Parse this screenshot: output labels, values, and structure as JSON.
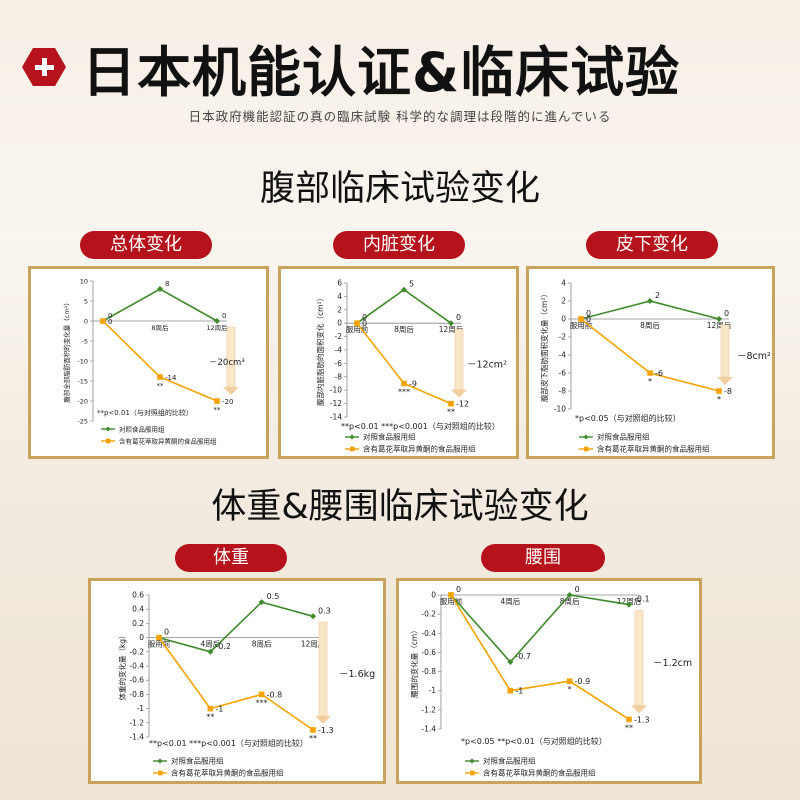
{
  "header": {
    "title": "日本机能认证&临床试验",
    "subtitle": "日本政府機能認証の真の臨床試験 科学的な調理は段階的に進んでいる"
  },
  "section1": {
    "title": "腹部临床试验变化"
  },
  "section2": {
    "title": "体重&腰围临床试验变化"
  },
  "colors": {
    "control": "#3f8a2a",
    "treatment": "#f5a300",
    "accent": "#b5121b",
    "frame": "#c9a25c"
  },
  "chart_data": [
    {
      "type": "line",
      "tab": "总体变化",
      "ylabel": "腹部全部脂肪面积的变化量（cm²）",
      "categories": [
        "",
        "8周后",
        "12周后"
      ],
      "ylim": [
        -25,
        10
      ],
      "yticks": [
        "10",
        "5",
        "0",
        "-5",
        "-10",
        "-15",
        "-20",
        "-25"
      ],
      "series": [
        {
          "name": "对照食品服用组",
          "values": [
            0,
            8,
            0
          ],
          "labels": [
            "0",
            "8",
            "0"
          ],
          "marks": [
            "",
            "",
            ""
          ]
        },
        {
          "name": "含有葛花萃取异黄酮的食品服用组",
          "values": [
            0,
            -14,
            -20
          ],
          "labels": [
            "0",
            "-14",
            "-20"
          ],
          "marks": [
            "",
            "**",
            "**"
          ]
        }
      ],
      "arrow_label": "20cm³",
      "note": "**p<0.01（与对照组的比较）"
    },
    {
      "type": "line",
      "tab": "内脏变化",
      "ylabel": "腹部内脏脂肪的面积变化（cm²）",
      "categories": [
        "服用前",
        "8周后",
        "12周后"
      ],
      "ylim": [
        -14,
        6
      ],
      "yticks": [
        "6",
        "4",
        "2",
        "0",
        "-2",
        "-4",
        "-6",
        "-8",
        "-10",
        "-12",
        "-14"
      ],
      "series": [
        {
          "name": "对照食品服用组",
          "values": [
            0,
            5,
            0
          ],
          "labels": [
            "0",
            "5",
            "0"
          ],
          "marks": [
            "",
            "",
            ""
          ]
        },
        {
          "name": "含有葛花萃取异黄酮的食品服用组",
          "values": [
            0,
            -9,
            -12
          ],
          "labels": [
            "0",
            "-9",
            "-12"
          ],
          "marks": [
            "",
            "***",
            "**"
          ]
        }
      ],
      "arrow_label": "12cm²",
      "note": "**p<0.01 ***p<0.001（与对照组的比较）"
    },
    {
      "type": "line",
      "tab": "皮下变化",
      "ylabel": "腹部皮下脂肪面积变化量（cm²）",
      "categories": [
        "服用前",
        "8周后",
        "12周后"
      ],
      "ylim": [
        -10,
        4
      ],
      "yticks": [
        "4",
        "2",
        "0",
        "-2",
        "-4",
        "-6",
        "-8",
        "-10"
      ],
      "series": [
        {
          "name": "对照食品服用组",
          "values": [
            0,
            2,
            0
          ],
          "labels": [
            "0",
            "2",
            "0"
          ],
          "marks": [
            "",
            "",
            ""
          ]
        },
        {
          "name": "含有葛花萃取异黄酮的食品服用组",
          "values": [
            0,
            -6,
            -8
          ],
          "labels": [
            "0",
            "-6",
            "-8"
          ],
          "marks": [
            "",
            "*",
            "*"
          ]
        }
      ],
      "arrow_label": "8cm²",
      "note": "*p<0.05（与对照组的比较）"
    },
    {
      "type": "line",
      "tab": "体重",
      "ylabel": "体重的变化量（kg）",
      "categories": [
        "服用前",
        "4周后",
        "8周后",
        "12周后"
      ],
      "ylim": [
        -1.4,
        0.6
      ],
      "yticks": [
        "0.6",
        "0.4",
        "0.2",
        "0",
        "-0.2",
        "-0.4",
        "-0.6",
        "-0.8",
        "-1",
        "-1.2",
        "-1.4"
      ],
      "series": [
        {
          "name": "对照食品服用组",
          "values": [
            0,
            -0.2,
            0.5,
            0.3
          ],
          "labels": [
            "0",
            "-0.2",
            "0.5",
            "0.3"
          ],
          "marks": [
            "",
            "",
            "",
            ""
          ]
        },
        {
          "name": "含有葛花萃取异黄酮的食品服用组",
          "values": [
            0,
            -1,
            -0.8,
            -1.3
          ],
          "labels": [
            "",
            "-1",
            "-0.8",
            "-1.3"
          ],
          "marks": [
            "",
            "**",
            "***",
            "**"
          ]
        }
      ],
      "arrow_label": "1.6kg",
      "note": "**p<0.01 ***p<0.001（与对照组的比较）"
    },
    {
      "type": "line",
      "tab": "腰围",
      "ylabel": "腰围的变化量（cm）",
      "categories": [
        "服用前",
        "4周后",
        "8周后",
        "12周后"
      ],
      "ylim": [
        -1.4,
        0
      ],
      "yticks": [
        "0",
        "-0.2",
        "-0.4",
        "-0.6",
        "-0.8",
        "-1",
        "-1.2",
        "-1.4"
      ],
      "series": [
        {
          "name": "对照食品服用组",
          "values": [
            0,
            -0.7,
            0,
            -0.1
          ],
          "labels": [
            "0",
            "-0.7",
            "0",
            "-0.1"
          ],
          "marks": [
            "",
            "",
            "",
            ""
          ]
        },
        {
          "name": "含有葛花萃取异黄酮的食品服用组",
          "values": [
            0,
            -1,
            -0.9,
            -1.3
          ],
          "labels": [
            "",
            "-1",
            "-0.9",
            "-1.3"
          ],
          "marks": [
            "",
            "",
            "*",
            "**"
          ]
        }
      ],
      "arrow_label": "1.2cm",
      "note": "*p<0.05 **p<0.01（与对照组的比较）"
    }
  ]
}
